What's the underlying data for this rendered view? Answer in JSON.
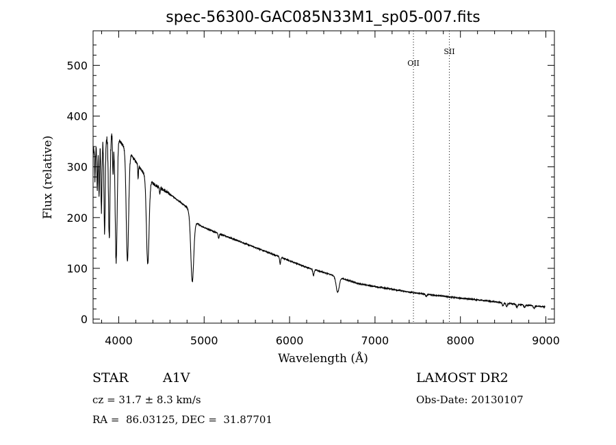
{
  "chart_data": {
    "type": "line",
    "title": "spec-56300-GAC085N33M1_sp05-007.fits",
    "xlabel": "Wavelength (Å)",
    "ylabel": "Flux (relative)",
    "xlim": [
      3700,
      9100
    ],
    "ylim": [
      -8,
      568
    ],
    "xticks": [
      4000,
      5000,
      6000,
      7000,
      8000,
      9000
    ],
    "yticks": [
      0,
      100,
      200,
      300,
      400,
      500
    ],
    "grid": false,
    "line_color": "#000000",
    "annotations": [
      {
        "label": "OII",
        "x": 7450
      },
      {
        "label": "SII",
        "x": 7870
      }
    ],
    "continuum": [
      [
        3700,
        330
      ],
      [
        3750,
        335
      ],
      [
        3800,
        345
      ],
      [
        3850,
        352
      ],
      [
        3900,
        360
      ],
      [
        3950,
        362
      ],
      [
        4000,
        355
      ],
      [
        4050,
        342
      ],
      [
        4100,
        330
      ],
      [
        4150,
        322
      ],
      [
        4200,
        310
      ],
      [
        4250,
        298
      ],
      [
        4300,
        285
      ],
      [
        4350,
        275
      ],
      [
        4400,
        268
      ],
      [
        4450,
        262
      ],
      [
        4500,
        257
      ],
      [
        4600,
        246
      ],
      [
        4700,
        233
      ],
      [
        4800,
        220
      ],
      [
        4900,
        190
      ],
      [
        5000,
        180
      ],
      [
        5200,
        167
      ],
      [
        5400,
        154
      ],
      [
        5600,
        141
      ],
      [
        5800,
        128
      ],
      [
        6000,
        115
      ],
      [
        6200,
        102
      ],
      [
        6400,
        92
      ],
      [
        6600,
        81
      ],
      [
        6800,
        70
      ],
      [
        7000,
        64
      ],
      [
        7200,
        59
      ],
      [
        7400,
        53
      ],
      [
        7600,
        49
      ],
      [
        7800,
        45
      ],
      [
        8000,
        41
      ],
      [
        8200,
        38
      ],
      [
        8400,
        34
      ],
      [
        8600,
        30
      ],
      [
        8800,
        27
      ],
      [
        8990,
        24
      ]
    ],
    "absorption_lines": [
      {
        "x": 3722,
        "depth": 60,
        "width": 4
      },
      {
        "x": 3750,
        "depth": 80,
        "width": 5
      },
      {
        "x": 3771,
        "depth": 100,
        "width": 5
      },
      {
        "x": 3798,
        "depth": 130,
        "width": 6
      },
      {
        "x": 3835,
        "depth": 180,
        "width": 7
      },
      {
        "x": 3889,
        "depth": 200,
        "width": 9
      },
      {
        "x": 3934,
        "depth": 80,
        "width": 5
      },
      {
        "x": 3970,
        "depth": 245,
        "width": 12
      },
      {
        "x": 4102,
        "depth": 215,
        "width": 14
      },
      {
        "x": 4227,
        "depth": 25,
        "width": 4
      },
      {
        "x": 4340,
        "depth": 170,
        "width": 15
      },
      {
        "x": 4481,
        "depth": 12,
        "width": 4
      },
      {
        "x": 4861,
        "depth": 128,
        "width": 17
      },
      {
        "x": 5170,
        "depth": 10,
        "width": 6
      },
      {
        "x": 5890,
        "depth": 14,
        "width": 6
      },
      {
        "x": 6280,
        "depth": 12,
        "width": 8
      },
      {
        "x": 6563,
        "depth": 30,
        "width": 18
      },
      {
        "x": 7600,
        "depth": 4,
        "width": 8
      },
      {
        "x": 8498,
        "depth": 6,
        "width": 8
      },
      {
        "x": 8542,
        "depth": 7,
        "width": 8
      },
      {
        "x": 8662,
        "depth": 6,
        "width": 8
      },
      {
        "x": 8750,
        "depth": 5,
        "width": 8
      },
      {
        "x": 8862,
        "depth": 5,
        "width": 8
      }
    ]
  },
  "info": {
    "object_class": "STAR",
    "subclass": "A1V",
    "survey": "LAMOST DR2",
    "cz": "cz = 31.7 ± 8.3 km/s",
    "obs_date": "Obs-Date: 20130107",
    "coords": "RA =  86.03125, DEC =  31.87701"
  }
}
